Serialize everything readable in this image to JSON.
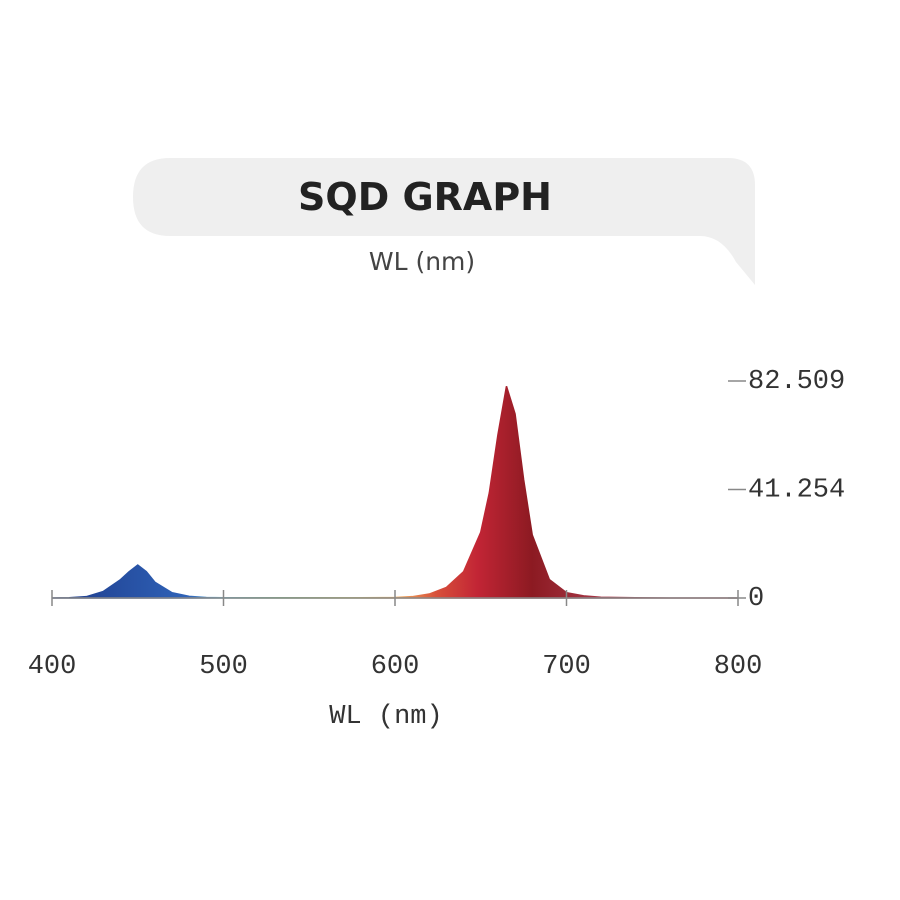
{
  "chart_data": {
    "type": "area",
    "title": "SQD GRAPH",
    "subtitle": "WL (nm)",
    "x_label": "WL (nm)",
    "x": [
      400,
      410,
      420,
      430,
      440,
      445,
      450,
      455,
      460,
      470,
      480,
      490,
      500,
      520,
      540,
      560,
      580,
      600,
      610,
      620,
      630,
      640,
      650,
      655,
      660,
      665,
      670,
      675,
      680,
      690,
      700,
      710,
      720,
      740,
      760,
      780,
      800
    ],
    "values": [
      0,
      0.1,
      0.5,
      2.5,
      7,
      10,
      12.5,
      10,
      6,
      2,
      0.6,
      0.2,
      0.1,
      0.1,
      0.1,
      0.1,
      0.1,
      0.2,
      0.5,
      1.5,
      4,
      10,
      25,
      40,
      62,
      80.5,
      70,
      45,
      24,
      7,
      2,
      0.8,
      0.3,
      0.1,
      0,
      0,
      0
    ],
    "xlim": [
      400,
      800
    ],
    "xticks": [
      400,
      500,
      600,
      700,
      800
    ],
    "ylim": [
      0,
      82.509
    ],
    "yticks": [
      0,
      41.254,
      82.509
    ]
  }
}
